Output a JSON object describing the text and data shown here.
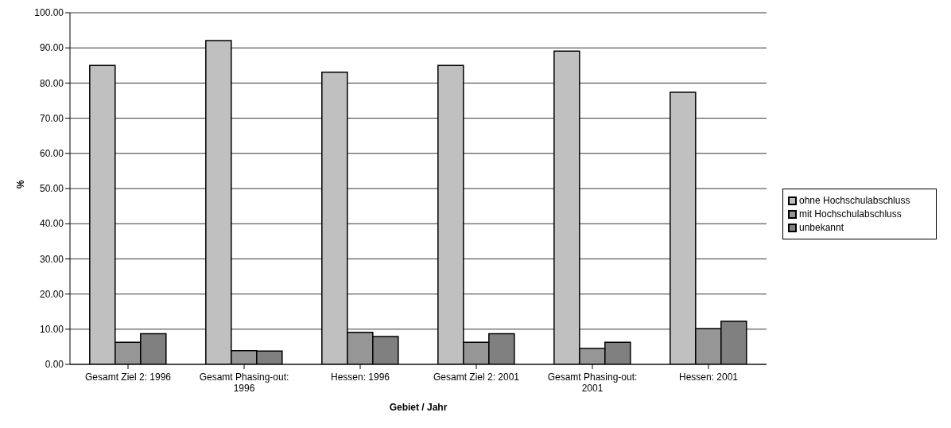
{
  "chart_data": {
    "type": "bar",
    "xlabel": "Gebiet / Jahr",
    "ylabel": "%",
    "categories": [
      "Gesamt Ziel 2: 1996",
      "Gesamt Phasing-out: 1996",
      "Hessen: 1996",
      "Gesamt Ziel 2: 2001",
      "Gesamt Phasing-out: 2001",
      "Hessen: 2001"
    ],
    "series": [
      {
        "name": "ohne Hochschulabschluss",
        "color": "#c0c0c0",
        "values": [
          85.0,
          92.1,
          83.1,
          85.0,
          89.1,
          77.4
        ]
      },
      {
        "name": "mit Hochschulabschluss",
        "color": "#969696",
        "values": [
          6.3,
          3.9,
          9.1,
          6.3,
          4.5,
          10.2
        ]
      },
      {
        "name": "unbekannt",
        "color": "#808080",
        "values": [
          8.7,
          3.8,
          7.9,
          8.7,
          6.3,
          12.3
        ]
      }
    ],
    "ylim": [
      0,
      100
    ],
    "yticks": [
      {
        "value": 0,
        "label": "0.00"
      },
      {
        "value": 10,
        "label": "10.00"
      },
      {
        "value": 20,
        "label": "20.00"
      },
      {
        "value": 30,
        "label": "30.00"
      },
      {
        "value": 40,
        "label": "40.00"
      },
      {
        "value": 50,
        "label": "50.00"
      },
      {
        "value": 60,
        "label": "60.00"
      },
      {
        "value": 70,
        "label": "70.00"
      },
      {
        "value": 80,
        "label": "80.00"
      },
      {
        "value": 90,
        "label": "90.00"
      },
      {
        "value": 100,
        "label": "100.00"
      }
    ],
    "grid": "y",
    "legend": "right"
  }
}
